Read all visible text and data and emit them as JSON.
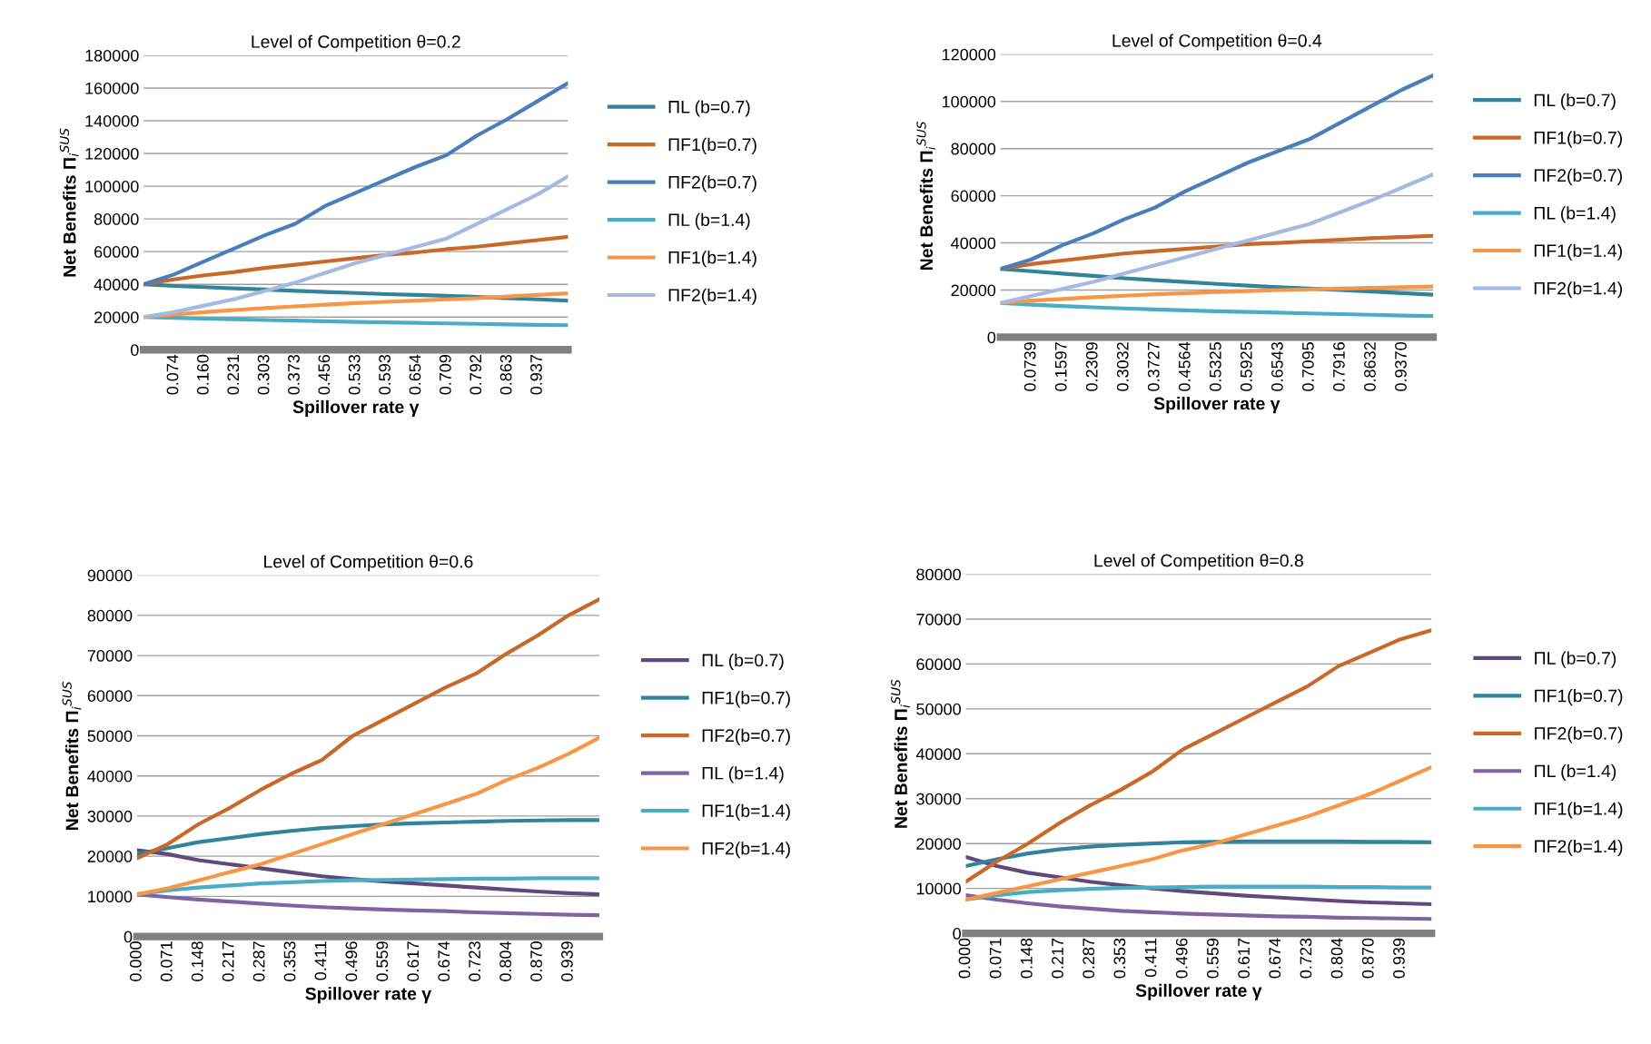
{
  "chart_data": [
    {
      "type": "line",
      "title": "Level of Competition θ=0.2",
      "xlabel": "Spillover rate γ",
      "ylabel": "Net Benefits Π$_{i}$$^{SUS}$",
      "ylim": [
        0,
        180000
      ],
      "yticks": [
        0,
        20000,
        40000,
        60000,
        80000,
        100000,
        120000,
        140000,
        160000,
        180000
      ],
      "grid": "y",
      "legend": "right",
      "marker": "none",
      "line_style": "solid",
      "categories": [
        null,
        "0.074",
        "0.160",
        "0.231",
        "0.303",
        "0.373",
        "0.456",
        "0.533",
        "0.593",
        "0.654",
        "0.709",
        "0.792",
        "0.863",
        "0.937",
        null
      ],
      "series": [
        {
          "name": "ΠL (b=0.7)",
          "color": "#31849b",
          "values": [
            40000,
            39000,
            38300,
            37500,
            36800,
            36000,
            35300,
            34700,
            34000,
            33500,
            33000,
            32300,
            31500,
            30800,
            30000
          ]
        },
        {
          "name": "ΠF1(b=0.7)",
          "color": "#c8692a",
          "values": [
            40000,
            43000,
            45500,
            47500,
            50000,
            52000,
            54000,
            56000,
            58000,
            59500,
            61500,
            63000,
            65000,
            67000,
            69000
          ]
        },
        {
          "name": "ΠF2(b=0.7)",
          "color": "#4a7ebb",
          "values": [
            40000,
            46000,
            54000,
            62000,
            70000,
            77000,
            88000,
            96000,
            104000,
            112000,
            119000,
            131000,
            141000,
            152000,
            163000
          ]
        },
        {
          "name": "ΠL (b=1.4)",
          "color": "#4bacc6",
          "values": [
            20000,
            19500,
            19000,
            18600,
            18200,
            17800,
            17400,
            17000,
            16700,
            16400,
            16100,
            15800,
            15500,
            15200,
            15000
          ]
        },
        {
          "name": "ΠF1(b=1.4)",
          "color": "#f79646",
          "values": [
            20000,
            21500,
            23000,
            24300,
            25500,
            26500,
            27500,
            28500,
            29300,
            30000,
            30800,
            31500,
            32500,
            33500,
            34500
          ]
        },
        {
          "name": "ΠF2(b=1.4)",
          "color": "#a6b9e0",
          "values": [
            20000,
            23000,
            27000,
            31000,
            36000,
            41000,
            47000,
            53000,
            58000,
            63000,
            68000,
            77000,
            86000,
            95000,
            106000
          ]
        }
      ]
    },
    {
      "type": "line",
      "title": "Level of Competition θ=0.4",
      "xlabel": "Spillover rate γ",
      "ylabel": "Net Benefits Π$_{i}$$^{SUS}$",
      "ylim": [
        0,
        120000
      ],
      "yticks": [
        0,
        20000,
        40000,
        60000,
        80000,
        100000,
        120000
      ],
      "grid": "y",
      "legend": "right",
      "marker": "none",
      "line_style": "solid",
      "categories": [
        null,
        "0.0739",
        "0.1597",
        "0.2309",
        "0.3032",
        "0.3727",
        "0.4564",
        "0.5325",
        "0.5925",
        "0.6543",
        "0.7095",
        "0.7916",
        "0.8632",
        "0.9370",
        null
      ],
      "series": [
        {
          "name": "ΠL (b=0.7)",
          "color": "#31849b",
          "values": [
            29000,
            28000,
            27000,
            26000,
            25000,
            24200,
            23400,
            22600,
            21900,
            21200,
            20600,
            20000,
            19400,
            18700,
            18000
          ]
        },
        {
          "name": "ΠF1(b=0.7)",
          "color": "#c8692a",
          "values": [
            29000,
            31000,
            32500,
            34000,
            35500,
            36500,
            37500,
            38500,
            39500,
            40000,
            40700,
            41300,
            42000,
            42500,
            43000
          ]
        },
        {
          "name": "ΠF2(b=0.7)",
          "color": "#4a7ebb",
          "values": [
            29000,
            33000,
            39000,
            44000,
            50000,
            55000,
            62000,
            68000,
            74000,
            79000,
            84000,
            91000,
            98000,
            105000,
            111000
          ]
        },
        {
          "name": "ΠL (b=1.4)",
          "color": "#4bacc6",
          "values": [
            14500,
            13800,
            13200,
            12700,
            12200,
            11800,
            11400,
            11000,
            10700,
            10400,
            10100,
            9800,
            9500,
            9200,
            9000
          ]
        },
        {
          "name": "ΠF1(b=1.4)",
          "color": "#f79646",
          "values": [
            14500,
            15500,
            16200,
            17000,
            17600,
            18200,
            18700,
            19200,
            19600,
            20000,
            20300,
            20600,
            20900,
            21200,
            21500
          ]
        },
        {
          "name": "ΠF2(b=1.4)",
          "color": "#a6b9e0",
          "values": [
            14500,
            17500,
            20500,
            23500,
            27000,
            30500,
            34000,
            37500,
            41000,
            44500,
            48000,
            53000,
            58000,
            63500,
            69000
          ]
        }
      ]
    },
    {
      "type": "line",
      "title": "Level of Competition θ=0.6",
      "xlabel": "Spillover rate γ",
      "ylabel": "Net Benefits Π$_{i}$$^{SUS}$",
      "ylim": [
        0,
        90000
      ],
      "yticks": [
        0,
        10000,
        20000,
        30000,
        40000,
        50000,
        60000,
        70000,
        80000,
        90000
      ],
      "grid": "y",
      "legend": "right",
      "marker": "none",
      "line_style": "solid",
      "categories": [
        "0.000",
        "0.071",
        "0.148",
        "0.217",
        "0.287",
        "0.353",
        "0.411",
        "0.496",
        "0.559",
        "0.617",
        "0.674",
        "0.723",
        "0.804",
        "0.870",
        "0.939",
        null
      ],
      "series": [
        {
          "name": "ΠL (b=0.7)",
          "color": "#604a7b",
          "values": [
            21500,
            20500,
            19000,
            18000,
            17000,
            16000,
            15000,
            14300,
            13700,
            13200,
            12700,
            12200,
            11700,
            11200,
            10800,
            10500
          ]
        },
        {
          "name": "ΠF1(b=0.7)",
          "color": "#31849b",
          "values": [
            20500,
            22000,
            23500,
            24500,
            25500,
            26300,
            27000,
            27500,
            27900,
            28200,
            28400,
            28600,
            28800,
            28900,
            29000,
            29000
          ]
        },
        {
          "name": "ΠF2(b=0.7)",
          "color": "#c8692a",
          "values": [
            19500,
            23000,
            28000,
            32000,
            36500,
            40500,
            44000,
            50000,
            54000,
            58000,
            62000,
            65500,
            70500,
            75000,
            80000,
            84000
          ]
        },
        {
          "name": "ΠL (b=1.4)",
          "color": "#8064a2",
          "values": [
            10500,
            9800,
            9200,
            8700,
            8200,
            7700,
            7300,
            7000,
            6700,
            6500,
            6300,
            6000,
            5800,
            5600,
            5400,
            5300
          ]
        },
        {
          "name": "ΠF1(b=1.4)",
          "color": "#4bacc6",
          "values": [
            10500,
            11500,
            12200,
            12700,
            13200,
            13500,
            13800,
            14000,
            14100,
            14200,
            14300,
            14400,
            14400,
            14500,
            14500,
            14500
          ]
        },
        {
          "name": "ΠF2(b=1.4)",
          "color": "#f79646",
          "values": [
            10500,
            12000,
            14000,
            16000,
            18000,
            20500,
            23000,
            25500,
            28000,
            30500,
            33000,
            35500,
            39000,
            42000,
            45500,
            49500
          ]
        }
      ]
    },
    {
      "type": "line",
      "title": "Level of Competition θ=0.8",
      "xlabel": "Spillover rate γ",
      "ylabel": "Net Benefits Π$_{i}$$^{SUS}$",
      "ylim": [
        0,
        80000
      ],
      "yticks": [
        0,
        10000,
        20000,
        30000,
        40000,
        50000,
        60000,
        70000,
        80000
      ],
      "grid": "y",
      "legend": "right",
      "marker": "none",
      "line_style": "solid",
      "categories": [
        "0.000",
        "0.071",
        "0.148",
        "0.217",
        "0.287",
        "0.353",
        "0.411",
        "0.496",
        "0.559",
        "0.617",
        "0.674",
        "0.723",
        "0.804",
        "0.870",
        "0.939",
        null
      ],
      "series": [
        {
          "name": "ΠL (b=0.7)",
          "color": "#604a7b",
          "values": [
            17000,
            15000,
            13500,
            12500,
            11500,
            10700,
            10000,
            9400,
            8900,
            8400,
            8000,
            7600,
            7200,
            6900,
            6700,
            6500
          ]
        },
        {
          "name": "ΠF1(b=0.7)",
          "color": "#31849b",
          "values": [
            15000,
            16500,
            17800,
            18700,
            19300,
            19700,
            20000,
            20300,
            20400,
            20500,
            20500,
            20500,
            20500,
            20400,
            20400,
            20300
          ]
        },
        {
          "name": "ΠF2(b=0.7)",
          "color": "#c8692a",
          "values": [
            11500,
            16000,
            20000,
            24500,
            28500,
            32000,
            36000,
            41000,
            44500,
            48000,
            51500,
            55000,
            59500,
            62500,
            65500,
            67500
          ]
        },
        {
          "name": "ΠL (b=1.4)",
          "color": "#8064a2",
          "values": [
            8500,
            7500,
            6700,
            6000,
            5500,
            5000,
            4700,
            4400,
            4200,
            4000,
            3800,
            3700,
            3500,
            3400,
            3300,
            3200
          ]
        },
        {
          "name": "ΠF1(b=1.4)",
          "color": "#4bacc6",
          "values": [
            7500,
            8500,
            9200,
            9600,
            9900,
            10100,
            10200,
            10300,
            10400,
            10400,
            10400,
            10400,
            10300,
            10300,
            10200,
            10200
          ]
        },
        {
          "name": "ΠF2(b=1.4)",
          "color": "#f79646",
          "values": [
            7500,
            9000,
            10500,
            12000,
            13500,
            15000,
            16500,
            18500,
            20000,
            22000,
            24000,
            26000,
            28500,
            31000,
            34000,
            37000
          ]
        }
      ]
    }
  ]
}
